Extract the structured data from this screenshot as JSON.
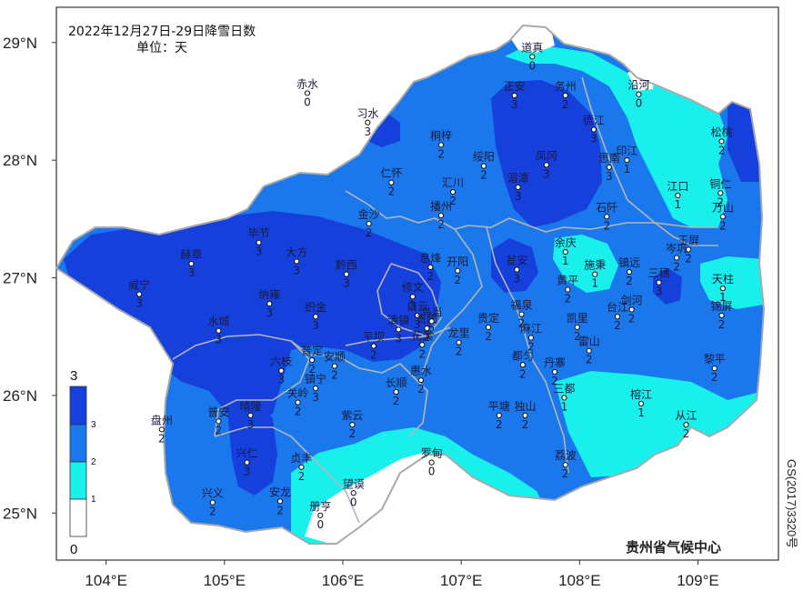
{
  "title": {
    "line1": "2022年12月27日-29日降雪日数",
    "line2": "单位：天"
  },
  "credit": "贵州省气候中心",
  "map_code": "GS(2017)3320号",
  "colors": {
    "c0": "#ffffff",
    "c1": "#19f0ec",
    "c2": "#1b78ec",
    "c3": "#1640dc",
    "border": "#a9a9a9",
    "frame": "#333333"
  },
  "legend": {
    "top": "3",
    "bottom": "0",
    "ticks": [
      "3",
      "2",
      "1"
    ]
  },
  "axes": {
    "lat": [
      {
        "v": 29,
        "label": "29°N"
      },
      {
        "v": 28,
        "label": "28°N"
      },
      {
        "v": 27,
        "label": "27°N"
      },
      {
        "v": 26,
        "label": "26°N"
      },
      {
        "v": 25,
        "label": "25°N"
      }
    ],
    "lon": [
      {
        "v": 104,
        "label": "104°E"
      },
      {
        "v": 105,
        "label": "105°E"
      },
      {
        "v": 106,
        "label": "106°E"
      },
      {
        "v": 107,
        "label": "107°E"
      },
      {
        "v": 108,
        "label": "108°E"
      },
      {
        "v": 109,
        "label": "109°E"
      }
    ],
    "lon_range": [
      103.58,
      109.68
    ],
    "lat_range": [
      24.6,
      29.3
    ]
  },
  "stations": [
    {
      "name": "道真",
      "lon": 107.6,
      "lat": 28.88,
      "v": "0"
    },
    {
      "name": "赤水",
      "lon": 105.7,
      "lat": 28.57,
      "v": "0"
    },
    {
      "name": "沿河",
      "lon": 108.5,
      "lat": 28.56,
      "v": "0"
    },
    {
      "name": "习水",
      "lon": 106.21,
      "lat": 28.32,
      "v": "3"
    },
    {
      "name": "正安",
      "lon": 107.45,
      "lat": 28.55,
      "v": "3"
    },
    {
      "name": "务州",
      "lon": 107.88,
      "lat": 28.55,
      "v": "2"
    },
    {
      "name": "德江",
      "lon": 108.12,
      "lat": 28.26,
      "v": "3"
    },
    {
      "name": "松桃",
      "lon": 109.2,
      "lat": 28.16,
      "v": "2"
    },
    {
      "name": "桐梓",
      "lon": 106.83,
      "lat": 28.13,
      "v": "2"
    },
    {
      "name": "绥阳",
      "lon": 107.19,
      "lat": 27.95,
      "v": "2"
    },
    {
      "name": "凤冈",
      "lon": 107.72,
      "lat": 27.96,
      "v": "3"
    },
    {
      "name": "思南",
      "lon": 108.25,
      "lat": 27.94,
      "v": "3"
    },
    {
      "name": "印江",
      "lon": 108.4,
      "lat": 28.0,
      "v": "1"
    },
    {
      "name": "仁怀",
      "lon": 106.41,
      "lat": 27.81,
      "v": "2"
    },
    {
      "name": "汇川",
      "lon": 106.93,
      "lat": 27.73,
      "v": "2"
    },
    {
      "name": "湄潭",
      "lon": 107.48,
      "lat": 27.77,
      "v": "3"
    },
    {
      "name": "江口",
      "lon": 108.83,
      "lat": 27.7,
      "v": "1"
    },
    {
      "name": "铜仁",
      "lon": 109.19,
      "lat": 27.72,
      "v": "2"
    },
    {
      "name": "金沙",
      "lon": 106.22,
      "lat": 27.46,
      "v": "2"
    },
    {
      "name": "播州",
      "lon": 106.83,
      "lat": 27.53,
      "v": "2"
    },
    {
      "name": "石阡",
      "lon": 108.23,
      "lat": 27.52,
      "v": "2"
    },
    {
      "name": "万山",
      "lon": 109.21,
      "lat": 27.52,
      "v": "2"
    },
    {
      "name": "毕节",
      "lon": 105.29,
      "lat": 27.3,
      "v": "3"
    },
    {
      "name": "大方",
      "lon": 105.61,
      "lat": 27.14,
      "v": "3"
    },
    {
      "name": "赫章",
      "lon": 104.72,
      "lat": 27.12,
      "v": "3"
    },
    {
      "name": "黔西",
      "lon": 106.03,
      "lat": 27.03,
      "v": "3"
    },
    {
      "name": "息烽",
      "lon": 106.74,
      "lat": 27.09,
      "v": "2"
    },
    {
      "name": "开阳",
      "lon": 106.97,
      "lat": 27.06,
      "v": "2"
    },
    {
      "name": "余庆",
      "lon": 107.88,
      "lat": 27.22,
      "v": "1"
    },
    {
      "name": "瓮安",
      "lon": 107.47,
      "lat": 27.07,
      "v": "3"
    },
    {
      "name": "施秉",
      "lon": 108.13,
      "lat": 27.03,
      "v": "1"
    },
    {
      "name": "镇远",
      "lon": 108.42,
      "lat": 27.05,
      "v": "2"
    },
    {
      "name": "玉屏",
      "lon": 108.92,
      "lat": 27.24,
      "v": "2"
    },
    {
      "name": "岑巩",
      "lon": 108.82,
      "lat": 27.17,
      "v": "2"
    },
    {
      "name": "三穗",
      "lon": 108.67,
      "lat": 26.96,
      "v": "3"
    },
    {
      "name": "天柱",
      "lon": 109.21,
      "lat": 26.91,
      "v": "1"
    },
    {
      "name": "威宁",
      "lon": 104.28,
      "lat": 26.86,
      "v": "3"
    },
    {
      "name": "纳雍",
      "lon": 105.38,
      "lat": 26.78,
      "v": "3"
    },
    {
      "name": "织金",
      "lon": 105.77,
      "lat": 26.67,
      "v": "3"
    },
    {
      "name": "修文",
      "lon": 106.59,
      "lat": 26.84,
      "v": "3"
    },
    {
      "name": "白云",
      "lon": 106.63,
      "lat": 26.68,
      "v": "3"
    },
    {
      "name": "黄平",
      "lon": 107.9,
      "lat": 26.9,
      "v": "2"
    },
    {
      "name": "福泉",
      "lon": 107.51,
      "lat": 26.69,
      "v": "2"
    },
    {
      "name": "剑河",
      "lon": 108.44,
      "lat": 26.73,
      "v": "2"
    },
    {
      "name": "台江",
      "lon": 108.32,
      "lat": 26.67,
      "v": "2"
    },
    {
      "name": "凯里",
      "lon": 107.98,
      "lat": 26.58,
      "v": "2"
    },
    {
      "name": "锦屏",
      "lon": 109.2,
      "lat": 26.68,
      "v": "2"
    },
    {
      "name": "水城",
      "lon": 104.95,
      "lat": 26.55,
      "v": "3"
    },
    {
      "name": "清镇",
      "lon": 106.47,
      "lat": 26.56,
      "v": "3"
    },
    {
      "name": "贵阳",
      "lon": 106.71,
      "lat": 26.57,
      "v": "2"
    },
    {
      "name": "乌当",
      "lon": 106.75,
      "lat": 26.63,
      "v": "2"
    },
    {
      "name": "龙里",
      "lon": 106.98,
      "lat": 26.45,
      "v": "2"
    },
    {
      "name": "贵定",
      "lon": 107.23,
      "lat": 26.58,
      "v": "2"
    },
    {
      "name": "麻江",
      "lon": 107.59,
      "lat": 26.49,
      "v": "2"
    },
    {
      "name": "雷山",
      "lon": 108.08,
      "lat": 26.38,
      "v": "2"
    },
    {
      "name": "平坝",
      "lon": 106.26,
      "lat": 26.42,
      "v": "2"
    },
    {
      "name": "花溪",
      "lon": 106.67,
      "lat": 26.43,
      "v": "2"
    },
    {
      "name": "普定",
      "lon": 105.74,
      "lat": 26.3,
      "v": "2"
    },
    {
      "name": "安顺",
      "lon": 105.93,
      "lat": 26.25,
      "v": "2"
    },
    {
      "name": "都匀",
      "lon": 107.52,
      "lat": 26.26,
      "v": "2"
    },
    {
      "name": "丹寨",
      "lon": 107.79,
      "lat": 26.2,
      "v": "2"
    },
    {
      "name": "黎平",
      "lon": 109.14,
      "lat": 26.23,
      "v": "2"
    },
    {
      "name": "六枝",
      "lon": 105.48,
      "lat": 26.21,
      "v": "3"
    },
    {
      "name": "镇宁",
      "lon": 105.77,
      "lat": 26.06,
      "v": "3"
    },
    {
      "name": "惠水",
      "lon": 106.66,
      "lat": 26.13,
      "v": "2"
    },
    {
      "name": "长顺",
      "lon": 106.45,
      "lat": 26.03,
      "v": "2"
    },
    {
      "name": "关岭",
      "lon": 105.62,
      "lat": 25.94,
      "v": "2"
    },
    {
      "name": "三都",
      "lon": 107.87,
      "lat": 25.98,
      "v": "1"
    },
    {
      "name": "榕江",
      "lon": 108.52,
      "lat": 25.93,
      "v": "1"
    },
    {
      "name": "晴隆",
      "lon": 105.22,
      "lat": 25.83,
      "v": "3"
    },
    {
      "name": "普安",
      "lon": 104.95,
      "lat": 25.78,
      "v": "2"
    },
    {
      "name": "盘州",
      "lon": 104.47,
      "lat": 25.71,
      "v": "2"
    },
    {
      "name": "紫云",
      "lon": 106.08,
      "lat": 25.75,
      "v": "2"
    },
    {
      "name": "平塘",
      "lon": 107.32,
      "lat": 25.83,
      "v": "2"
    },
    {
      "name": "独山",
      "lon": 107.54,
      "lat": 25.83,
      "v": "2"
    },
    {
      "name": "从江",
      "lon": 108.9,
      "lat": 25.75,
      "v": "2"
    },
    {
      "name": "兴仁",
      "lon": 105.19,
      "lat": 25.43,
      "v": "3"
    },
    {
      "name": "贞丰",
      "lon": 105.65,
      "lat": 25.39,
      "v": "2"
    },
    {
      "name": "罗甸",
      "lon": 106.75,
      "lat": 25.43,
      "v": "0"
    },
    {
      "name": "荔波",
      "lon": 107.88,
      "lat": 25.41,
      "v": "2"
    },
    {
      "name": "望谟",
      "lon": 106.09,
      "lat": 25.17,
      "v": "0"
    },
    {
      "name": "安龙",
      "lon": 105.47,
      "lat": 25.1,
      "v": "2"
    },
    {
      "name": "兴义",
      "lon": 104.9,
      "lat": 25.09,
      "v": "2"
    },
    {
      "name": "册亨",
      "lon": 105.81,
      "lat": 24.98,
      "v": "0"
    }
  ]
}
